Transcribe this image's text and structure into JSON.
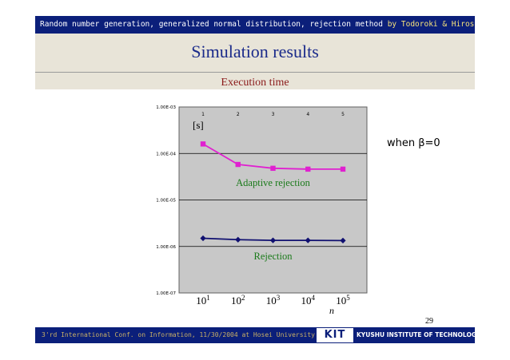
{
  "header": {
    "topic": "Random number generation, generalized normal distribution, rejection method",
    "by": "by",
    "authors": "Todoroki & Hirose*"
  },
  "slide_title": "Simulation results",
  "side_note": "when β=0",
  "page_number": "29",
  "footer": {
    "conference": "3'rd International Conf. on Information, 11/30/2004 at Hosei University",
    "logo_text": "KIT",
    "institute": "KYUSHU INSTITUTE OF TECHNOLOGY"
  },
  "colors": {
    "banner": "#0b1f7a",
    "adaptive": "#e020d0",
    "rejection": "#101070",
    "plot_bg": "#c8c8c8",
    "label_green": "#1a7a1a"
  },
  "chart_data": {
    "type": "line",
    "title": "Execution time",
    "ylabel": "[s]",
    "xlabel": "n",
    "y_scale": "log",
    "ylim": [
      1e-07,
      0.001
    ],
    "y_ticks": [
      "1.00E-03",
      "1.00E-04",
      "1.00E-05",
      "1.00E-06",
      "1.00E-07"
    ],
    "x_top_ticks": [
      "1",
      "2",
      "3",
      "4",
      "5"
    ],
    "x_bottom_ticks": [
      {
        "base": "10",
        "exp": "1"
      },
      {
        "base": "10",
        "exp": "2"
      },
      {
        "base": "10",
        "exp": "3"
      },
      {
        "base": "10",
        "exp": "4"
      },
      {
        "base": "10",
        "exp": "5"
      }
    ],
    "x": [
      10,
      100,
      1000,
      10000,
      100000
    ],
    "grid": "horizontal",
    "series": [
      {
        "name": "Adaptive rejection",
        "marker": "square",
        "values": [
          0.00016,
          5.8e-05,
          4.8e-05,
          4.6e-05,
          4.6e-05
        ]
      },
      {
        "name": "Rejection",
        "marker": "diamond",
        "values": [
          1.5e-06,
          1.4e-06,
          1.35e-06,
          1.35e-06,
          1.34e-06
        ]
      }
    ]
  }
}
